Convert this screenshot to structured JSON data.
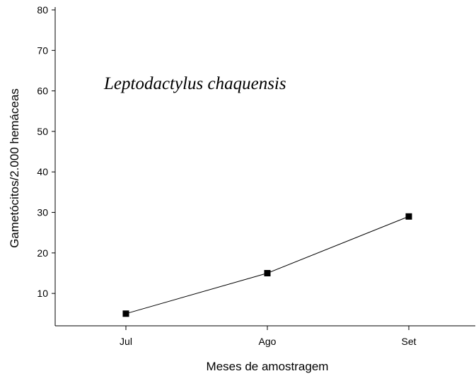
{
  "chart_data": {
    "type": "line",
    "annotation": "Leptodactylus chaquensis",
    "x_label": "Meses de amostragem",
    "y_label": "Gametócitos/2.000 hemáceas",
    "categories": [
      "Jul",
      "Ago",
      "Set"
    ],
    "values": [
      5,
      15,
      29
    ],
    "color": "#000000",
    "ylim": [
      2,
      80
    ],
    "yticks": [
      10,
      20,
      30,
      40,
      50,
      60,
      70,
      80
    ],
    "grid": false
  }
}
